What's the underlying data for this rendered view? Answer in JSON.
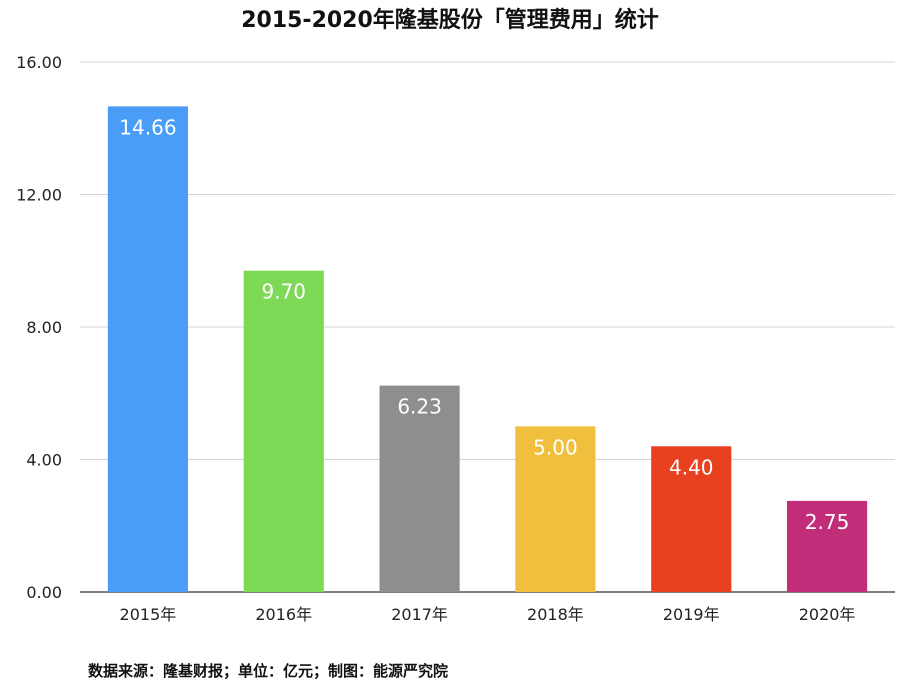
{
  "chart_data": {
    "type": "bar",
    "title": "2015-2020年隆基股份「管理费用」统计",
    "categories": [
      "2015年",
      "2016年",
      "2017年",
      "2018年",
      "2019年",
      "2020年"
    ],
    "values": [
      14.66,
      9.7,
      6.23,
      5.0,
      4.4,
      2.75
    ],
    "value_labels": [
      "14.66",
      "9.70",
      "6.23",
      "5.00",
      "4.40",
      "2.75"
    ],
    "bar_colors": [
      "#4a9df7",
      "#7ed957",
      "#8e8e8e",
      "#f0bf3d",
      "#e8411f",
      "#c22d7a"
    ],
    "yticks": [
      "0.00",
      "4.00",
      "8.00",
      "12.00",
      "16.00"
    ],
    "ylim": [
      0,
      16
    ],
    "grid": true,
    "legend": "none",
    "source": "数据来源：隆基财报；单位：亿元；制图：能源严究院"
  }
}
